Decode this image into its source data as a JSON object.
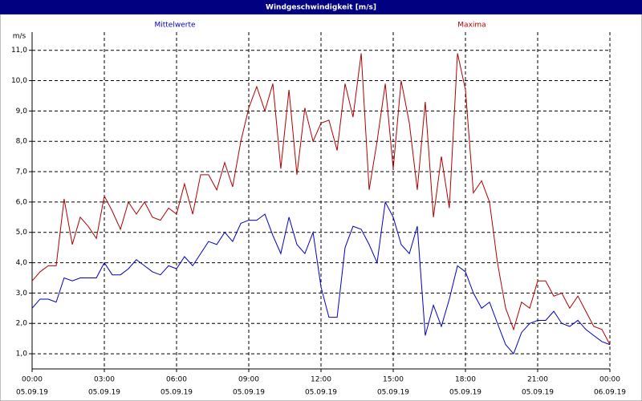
{
  "chart_data": {
    "type": "line",
    "title": "Windgeschwindigkeit [m/s]",
    "y_label": "m/s",
    "x": [
      0,
      0.33,
      0.67,
      1,
      1.33,
      1.67,
      2,
      2.33,
      2.67,
      3,
      3.33,
      3.67,
      4,
      4.33,
      4.67,
      5,
      5.33,
      5.67,
      6,
      6.33,
      6.67,
      7,
      7.33,
      7.67,
      8,
      8.33,
      8.67,
      9,
      9.33,
      9.67,
      10,
      10.33,
      10.67,
      11,
      11.33,
      11.67,
      12,
      12.33,
      12.67,
      13,
      13.33,
      13.67,
      14,
      14.33,
      14.67,
      15,
      15.33,
      15.67,
      16,
      16.33,
      16.67,
      17,
      17.33,
      17.67,
      18,
      18.33,
      18.67,
      19,
      19.33,
      19.67,
      20,
      20.33,
      20.67,
      21,
      21.33,
      21.67,
      22,
      22.33,
      22.67,
      23,
      23.33,
      23.67,
      24
    ],
    "series": [
      {
        "name": "Mittelwerte",
        "color": "#0000c0",
        "values": [
          2.5,
          2.8,
          2.8,
          2.7,
          3.5,
          3.4,
          3.5,
          3.5,
          3.5,
          4.0,
          3.6,
          3.6,
          3.8,
          4.1,
          3.9,
          3.7,
          3.6,
          3.9,
          3.8,
          4.2,
          3.9,
          4.3,
          4.7,
          4.6,
          5.0,
          4.7,
          5.3,
          5.4,
          5.4,
          5.6,
          4.9,
          4.3,
          5.5,
          4.6,
          4.3,
          5.0,
          3.2,
          2.2,
          2.2,
          4.5,
          5.2,
          5.1,
          4.6,
          4.0,
          6.0,
          5.5,
          4.6,
          4.3,
          5.2,
          1.6,
          2.6,
          1.9,
          2.8,
          3.9,
          3.7,
          3.0,
          2.5,
          2.7,
          2.0,
          1.3,
          1.0,
          1.7,
          2.0,
          2.1,
          2.1,
          2.4,
          2.0,
          1.9,
          2.1,
          1.8,
          1.6,
          1.4,
          1.3
        ]
      },
      {
        "name": "Maxima",
        "color": "#b00000",
        "values": [
          3.4,
          3.7,
          3.9,
          3.9,
          6.1,
          4.6,
          5.5,
          5.2,
          4.8,
          6.2,
          5.7,
          5.1,
          6.0,
          5.6,
          6.0,
          5.5,
          5.4,
          5.8,
          5.6,
          6.6,
          5.6,
          6.9,
          6.9,
          6.4,
          7.3,
          6.5,
          8.0,
          9.1,
          9.8,
          9.0,
          9.9,
          7.1,
          9.7,
          6.9,
          9.1,
          8.0,
          8.6,
          8.7,
          7.7,
          9.9,
          8.8,
          10.9,
          6.4,
          8.0,
          9.9,
          7.1,
          10.0,
          8.6,
          6.4,
          9.3,
          5.5,
          7.5,
          5.8,
          10.9,
          9.7,
          6.3,
          6.7,
          6.0,
          4.0,
          2.5,
          1.8,
          2.7,
          2.5,
          3.4,
          3.4,
          2.9,
          3.0,
          2.5,
          2.9,
          2.4,
          1.9,
          1.8,
          1.3
        ]
      }
    ],
    "xlim": [
      0,
      24
    ],
    "xticks": [
      {
        "value": 0,
        "label": "00:00"
      },
      {
        "value": 3,
        "label": "03:00"
      },
      {
        "value": 6,
        "label": "06:00"
      },
      {
        "value": 9,
        "label": "09:00"
      },
      {
        "value": 12,
        "label": "12:00"
      },
      {
        "value": 15,
        "label": "15:00"
      },
      {
        "value": 18,
        "label": "18:00"
      },
      {
        "value": 21,
        "label": "21:00"
      },
      {
        "value": 24,
        "label": "00:00"
      }
    ],
    "xtick_dates": [
      "05.09.19",
      "05.09.19",
      "05.09.19",
      "05.09.19",
      "05.09.19",
      "05.09.19",
      "05.09.19",
      "05.09.19",
      "06.09.19"
    ],
    "ylim": [
      0.5,
      11.6
    ],
    "yticks": [
      {
        "value": 1,
        "label": "1,0"
      },
      {
        "value": 2,
        "label": "2,0"
      },
      {
        "value": 3,
        "label": "3,0"
      },
      {
        "value": 4,
        "label": "4,0"
      },
      {
        "value": 5,
        "label": "5,0"
      },
      {
        "value": 6,
        "label": "6,0"
      },
      {
        "value": 7,
        "label": "7,0"
      },
      {
        "value": 8,
        "label": "8,0"
      },
      {
        "value": 9,
        "label": "9,0"
      },
      {
        "value": 10,
        "label": "10,0"
      },
      {
        "value": 11,
        "label": "11,0"
      }
    ],
    "grid": true
  }
}
